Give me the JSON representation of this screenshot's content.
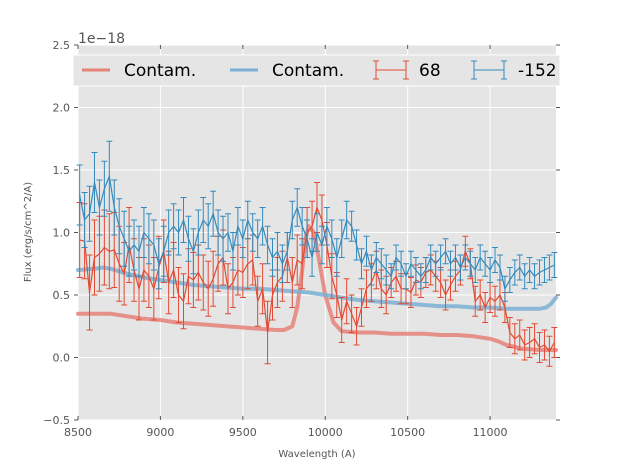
{
  "chart_data": {
    "type": "line",
    "title": "",
    "xlabel": "Wavelength (A)",
    "ylabel": "Flux (erg/s/cm^2/A)",
    "y_offset_text": "1e−18",
    "xlim": [
      8500,
      11400
    ],
    "ylim": [
      -0.5,
      2.5
    ],
    "x_ticks": [
      8500,
      9000,
      9500,
      10000,
      10500,
      11000
    ],
    "x_tick_labels": [
      "8500",
      "9000",
      "9500",
      "10000",
      "10500",
      "11000"
    ],
    "y_ticks": [
      -0.5,
      0.0,
      0.5,
      1.0,
      1.5,
      2.0,
      2.5
    ],
    "y_tick_labels": [
      "−0.5",
      "0.0",
      "0.5",
      "1.0",
      "1.5",
      "2.0",
      "2.5"
    ],
    "grid": true,
    "legend_placement": "top",
    "background": "#e5e5e5",
    "series": [
      {
        "name": "Contam.",
        "kind": "contam-line",
        "color": "#e5837a",
        "x": [
          8500,
          8600,
          8700,
          8800,
          8900,
          9000,
          9100,
          9200,
          9300,
          9400,
          9500,
          9600,
          9700,
          9750,
          9800,
          9830,
          9860,
          9880,
          9900,
          9930,
          9960,
          10000,
          10050,
          10100,
          10200,
          10300,
          10400,
          10500,
          10600,
          10700,
          10800,
          10900,
          11000,
          11050,
          11100,
          11200,
          11300,
          11400
        ],
        "values": [
          0.35,
          0.35,
          0.35,
          0.33,
          0.31,
          0.3,
          0.28,
          0.27,
          0.26,
          0.25,
          0.24,
          0.23,
          0.22,
          0.22,
          0.25,
          0.4,
          0.7,
          0.95,
          1.05,
          1.0,
          0.8,
          0.5,
          0.28,
          0.21,
          0.2,
          0.2,
          0.19,
          0.19,
          0.19,
          0.18,
          0.18,
          0.17,
          0.15,
          0.13,
          0.1,
          0.07,
          0.06,
          0.06
        ]
      },
      {
        "name": "Contam.",
        "kind": "contam-line",
        "color": "#7ab0d4",
        "x": [
          8500,
          8600,
          8650,
          8700,
          8800,
          8900,
          9000,
          9100,
          9200,
          9300,
          9400,
          9500,
          9600,
          9700,
          9800,
          9900,
          10000,
          10100,
          10200,
          10300,
          10400,
          10500,
          10600,
          10700,
          10800,
          10900,
          11000,
          11100,
          11200,
          11300,
          11340,
          11370,
          11400
        ],
        "values": [
          0.7,
          0.71,
          0.72,
          0.71,
          0.67,
          0.64,
          0.62,
          0.6,
          0.58,
          0.57,
          0.56,
          0.55,
          0.55,
          0.54,
          0.53,
          0.52,
          0.5,
          0.48,
          0.46,
          0.45,
          0.44,
          0.43,
          0.42,
          0.41,
          0.41,
          0.4,
          0.4,
          0.39,
          0.39,
          0.39,
          0.4,
          0.43,
          0.48
        ]
      },
      {
        "name": "68",
        "kind": "errorbar",
        "color": "#e24a33",
        "x": [
          8510,
          8540,
          8570,
          8600,
          8630,
          8660,
          8690,
          8720,
          8750,
          8780,
          8810,
          8840,
          8870,
          8900,
          8930,
          8960,
          8990,
          9020,
          9050,
          9080,
          9110,
          9140,
          9170,
          9200,
          9230,
          9260,
          9290,
          9320,
          9350,
          9380,
          9410,
          9440,
          9470,
          9500,
          9530,
          9560,
          9590,
          9620,
          9650,
          9680,
          9710,
          9740,
          9770,
          9800,
          9830,
          9860,
          9890,
          9920,
          9950,
          9980,
          10010,
          10040,
          10070,
          10100,
          10130,
          10160,
          10190,
          10220,
          10250,
          10280,
          10310,
          10340,
          10370,
          10400,
          10430,
          10460,
          10490,
          10520,
          10550,
          10580,
          10610,
          10640,
          10670,
          10700,
          10730,
          10760,
          10790,
          10820,
          10850,
          10880,
          10910,
          10940,
          10970,
          11000,
          11030,
          11060,
          11090,
          11120,
          11150,
          11180,
          11210,
          11240,
          11270,
          11300,
          11330,
          11360,
          11390
        ],
        "values": [
          0.94,
          0.93,
          0.52,
          0.8,
          0.83,
          0.88,
          0.85,
          0.86,
          0.75,
          0.67,
          0.9,
          0.7,
          0.55,
          0.7,
          0.65,
          0.55,
          0.72,
          0.85,
          0.6,
          0.7,
          0.5,
          0.45,
          0.65,
          0.62,
          0.68,
          0.6,
          0.55,
          0.63,
          0.75,
          0.8,
          0.55,
          0.6,
          0.7,
          0.68,
          0.75,
          0.78,
          0.45,
          0.55,
          0.2,
          0.5,
          0.6,
          0.65,
          0.8,
          0.6,
          0.78,
          0.75,
          1.0,
          1.05,
          1.2,
          1.1,
          0.9,
          0.65,
          0.5,
          0.3,
          0.45,
          0.35,
          0.25,
          0.4,
          0.55,
          0.6,
          0.7,
          0.55,
          0.5,
          0.6,
          0.65,
          0.55,
          0.55,
          0.52,
          0.62,
          0.6,
          0.68,
          0.7,
          0.65,
          0.6,
          0.5,
          0.58,
          0.65,
          0.7,
          0.85,
          0.75,
          0.45,
          0.5,
          0.4,
          0.48,
          0.45,
          0.5,
          0.4,
          0.2,
          0.15,
          0.18,
          0.1,
          0.12,
          0.15,
          0.08,
          0.1,
          0.05,
          0.12
        ],
        "errors": [
          0.3,
          0.3,
          0.3,
          0.3,
          0.3,
          0.3,
          0.3,
          0.3,
          0.3,
          0.25,
          0.3,
          0.25,
          0.25,
          0.25,
          0.25,
          0.25,
          0.25,
          0.25,
          0.25,
          0.22,
          0.22,
          0.22,
          0.22,
          0.22,
          0.22,
          0.22,
          0.22,
          0.22,
          0.22,
          0.22,
          0.2,
          0.2,
          0.2,
          0.2,
          0.2,
          0.2,
          0.2,
          0.2,
          0.25,
          0.2,
          0.2,
          0.2,
          0.2,
          0.2,
          0.2,
          0.2,
          0.2,
          0.2,
          0.2,
          0.2,
          0.18,
          0.18,
          0.18,
          0.18,
          0.18,
          0.15,
          0.15,
          0.15,
          0.15,
          0.15,
          0.15,
          0.15,
          0.15,
          0.12,
          0.12,
          0.12,
          0.12,
          0.12,
          0.12,
          0.12,
          0.12,
          0.12,
          0.12,
          0.12,
          0.12,
          0.12,
          0.12,
          0.12,
          0.12,
          0.12,
          0.12,
          0.12,
          0.12,
          0.12,
          0.12,
          0.12,
          0.12,
          0.12,
          0.12,
          0.12,
          0.12,
          0.12,
          0.12,
          0.12,
          0.12,
          0.12,
          0.12
        ]
      },
      {
        "name": "-152",
        "kind": "errorbar",
        "color": "#348abd",
        "x": [
          8510,
          8540,
          8570,
          8600,
          8630,
          8660,
          8690,
          8720,
          8750,
          8780,
          8810,
          8840,
          8870,
          8900,
          8930,
          8960,
          8990,
          9020,
          9050,
          9080,
          9110,
          9140,
          9170,
          9200,
          9230,
          9260,
          9290,
          9320,
          9350,
          9380,
          9410,
          9440,
          9470,
          9500,
          9530,
          9560,
          9590,
          9620,
          9650,
          9680,
          9710,
          9740,
          9770,
          9800,
          9830,
          9860,
          9890,
          9920,
          9950,
          9980,
          10010,
          10040,
          10070,
          10100,
          10130,
          10160,
          10190,
          10220,
          10250,
          10280,
          10310,
          10340,
          10370,
          10400,
          10430,
          10460,
          10490,
          10520,
          10550,
          10580,
          10610,
          10640,
          10670,
          10700,
          10730,
          10760,
          10790,
          10820,
          10850,
          10880,
          10910,
          10940,
          10970,
          11000,
          11030,
          11060,
          11090,
          11120,
          11150,
          11180,
          11210,
          11240,
          11270,
          11300,
          11330,
          11360,
          11390
        ],
        "values": [
          1.3,
          1.1,
          1.15,
          1.4,
          1.2,
          1.35,
          1.45,
          1.2,
          1.05,
          0.95,
          0.85,
          0.9,
          0.85,
          1.0,
          0.95,
          0.9,
          0.75,
          0.85,
          1.0,
          1.05,
          1.0,
          1.1,
          0.95,
          0.85,
          1.0,
          1.1,
          1.05,
          1.15,
          1.0,
          0.95,
          1.0,
          0.85,
          1.05,
          0.95,
          1.1,
          1.0,
          0.95,
          1.05,
          0.9,
          0.8,
          0.85,
          0.75,
          0.85,
          1.1,
          1.2,
          1.05,
          0.95,
          0.8,
          1.0,
          0.9,
          1.05,
          0.95,
          0.8,
          0.95,
          1.1,
          1.05,
          0.9,
          0.75,
          0.85,
          0.7,
          0.8,
          0.75,
          0.7,
          0.65,
          0.8,
          0.75,
          0.65,
          0.75,
          0.7,
          0.65,
          0.7,
          0.8,
          0.75,
          0.8,
          0.85,
          0.75,
          0.8,
          0.72,
          0.8,
          0.75,
          0.7,
          0.8,
          0.75,
          0.7,
          0.78,
          0.72,
          0.55,
          0.62,
          0.68,
          0.72,
          0.65,
          0.7,
          0.65,
          0.68,
          0.7,
          0.72,
          0.74
        ],
        "errors": [
          0.24,
          0.22,
          0.22,
          0.24,
          0.22,
          0.22,
          0.28,
          0.22,
          0.22,
          0.22,
          0.2,
          0.2,
          0.2,
          0.2,
          0.2,
          0.2,
          0.2,
          0.2,
          0.18,
          0.18,
          0.18,
          0.18,
          0.18,
          0.18,
          0.18,
          0.18,
          0.18,
          0.18,
          0.18,
          0.18,
          0.15,
          0.15,
          0.15,
          0.15,
          0.15,
          0.15,
          0.15,
          0.15,
          0.15,
          0.15,
          0.15,
          0.15,
          0.15,
          0.15,
          0.15,
          0.15,
          0.15,
          0.15,
          0.15,
          0.15,
          0.15,
          0.15,
          0.15,
          0.15,
          0.15,
          0.12,
          0.12,
          0.12,
          0.12,
          0.12,
          0.12,
          0.12,
          0.12,
          0.1,
          0.1,
          0.1,
          0.1,
          0.1,
          0.1,
          0.1,
          0.1,
          0.1,
          0.1,
          0.1,
          0.1,
          0.1,
          0.1,
          0.1,
          0.1,
          0.1,
          0.1,
          0.1,
          0.1,
          0.1,
          0.1,
          0.1,
          0.1,
          0.1,
          0.1,
          0.1,
          0.1,
          0.1,
          0.1,
          0.1,
          0.1,
          0.1,
          0.1
        ]
      }
    ],
    "legend": [
      {
        "label": "Contam.",
        "color": "#e5837a",
        "marker": "line"
      },
      {
        "label": "Contam.",
        "color": "#7ab0d4",
        "marker": "line"
      },
      {
        "label": "68",
        "color": "#e24a33",
        "marker": "errorbar"
      },
      {
        "label": "-152",
        "color": "#348abd",
        "marker": "errorbar"
      }
    ]
  }
}
